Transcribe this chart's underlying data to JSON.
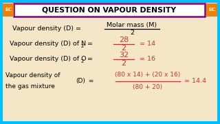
{
  "title": "QUESTION ON VAPOUR DENSITY",
  "bg_color": "#f5e6c8",
  "title_bg": "#ffffff",
  "title_border": "#800080",
  "title_color": "#000000",
  "ec_bg": "#e8820c",
  "ec_text": "EC",
  "outer_border": "#00bfff",
  "line1_left": "Vapour density (D) = ",
  "line1_frac_num": "Molar mass (M)",
  "line1_frac_den": "2",
  "line2_left": "Vapour density (D) of N",
  "line2_sub": "2",
  "line2_eq": " = ",
  "line2_frac_num": "28",
  "line2_frac_den": "2",
  "line2_right": " = 14",
  "line3_left": "Vapour density (D) of O",
  "line3_sub": "2",
  "line3_eq": " = ",
  "line3_frac_num": "32",
  "line3_frac_den": "2",
  "line3_right": " = 16",
  "line4_left1": "Vapour density of",
  "line4_left2": "the gas mixture",
  "line4_D": "(D)",
  "line4_eq": " = ",
  "line4_frac_num": "(80 x 14) + (20 x 16)",
  "line4_frac_den": "(80 + 20)",
  "line4_right": " = 14.4",
  "text_black": "#000000",
  "text_red": "#c0392b"
}
